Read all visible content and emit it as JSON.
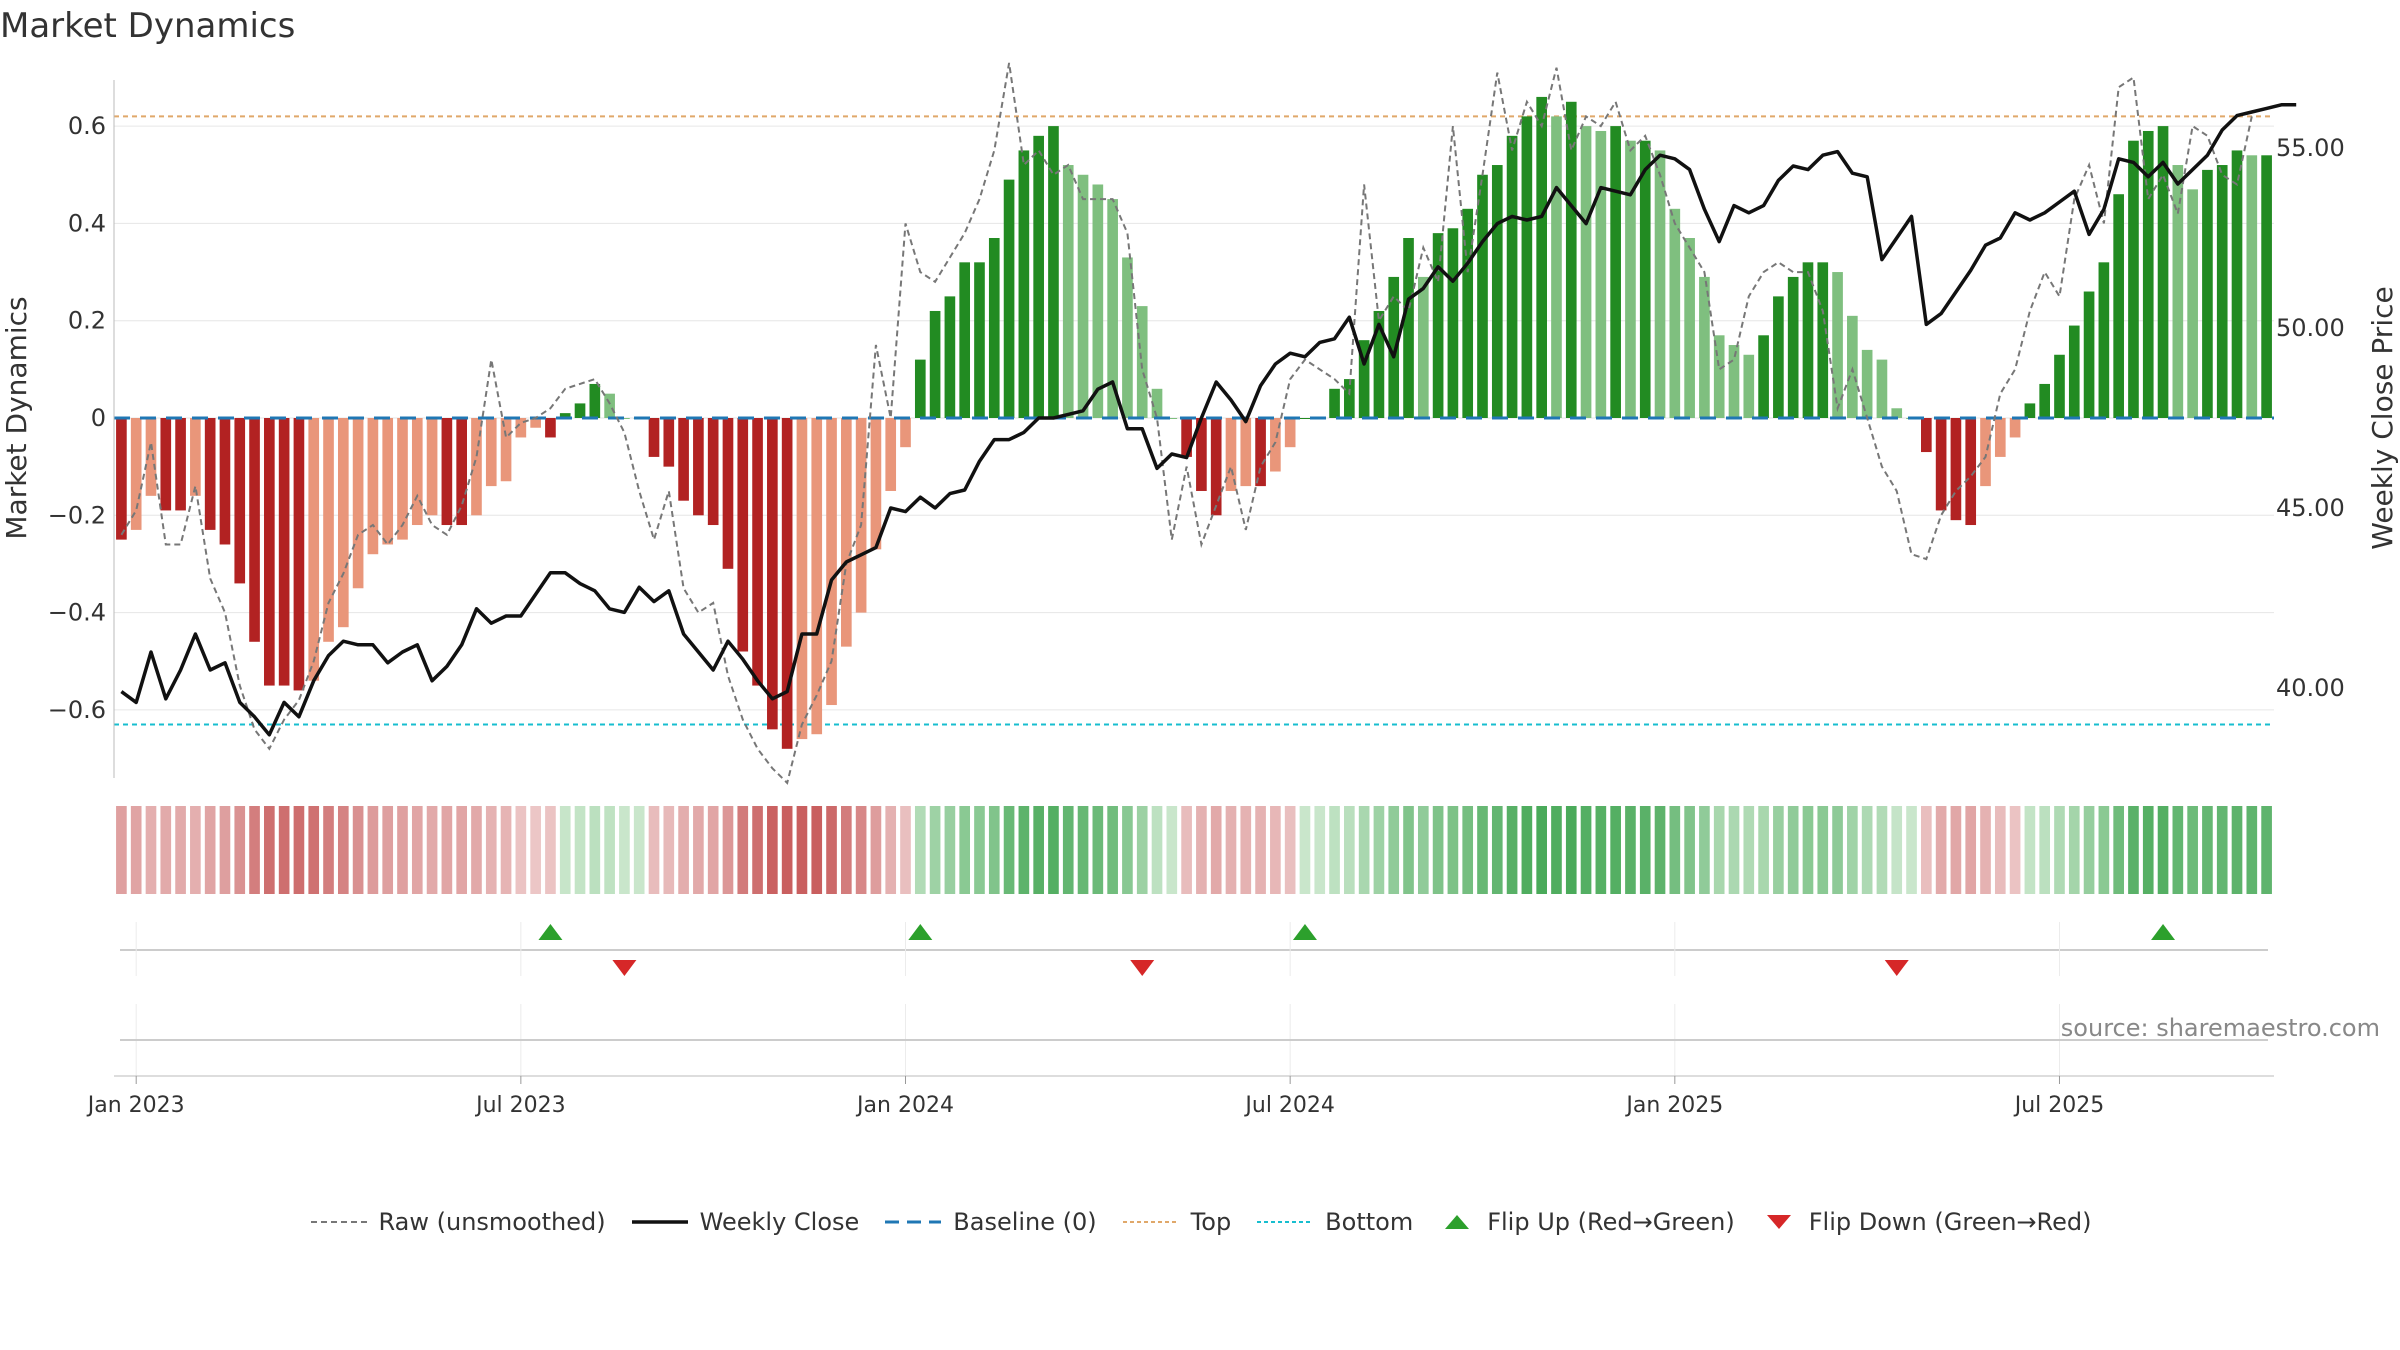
{
  "title": "Market Dynamics",
  "source": "source: sharemaestro.com",
  "colors": {
    "strong_green": "#228b22",
    "light_green": "#7fbf7f",
    "strong_red": "#b22222",
    "light_red": "#e9967a",
    "price_line": "#111111",
    "raw_line": "#777777",
    "baseline": "#1f77b4",
    "top": "#e0a86a",
    "bottom": "#17becf",
    "flip_up": "#2ca02c",
    "flip_down": "#d62728"
  },
  "legend": [
    {
      "label": "Raw (unsmoothed)",
      "icon": "dashed-gray-line"
    },
    {
      "label": "Weekly Close",
      "icon": "solid-black-line"
    },
    {
      "label": "Baseline (0)",
      "icon": "dashed-blue-line"
    },
    {
      "label": "Top",
      "icon": "dotted-orange-line"
    },
    {
      "label": "Bottom",
      "icon": "dotted-cyan-line"
    },
    {
      "label": "Flip Up (Red→Green)",
      "icon": "triangle-up-icon"
    },
    {
      "label": "Flip Down (Green→Red)",
      "icon": "triangle-down-icon"
    }
  ],
  "chart_data": {
    "type": "bar",
    "ylabel_left": "Market Dynamics",
    "ylabel_right": "Weekly Close Price",
    "ylim_left": [
      -0.74,
      0.74
    ],
    "ylim_right": [
      37.5,
      57.5
    ],
    "left_ticks": [
      -0.6,
      -0.4,
      -0.2,
      0,
      0.2,
      0.4,
      0.6
    ],
    "left_tick_labels": [
      "−0.6",
      "−0.4",
      "−0.2",
      "0",
      "0.2",
      "0.4",
      "0.6"
    ],
    "right_ticks": [
      40,
      45,
      50,
      55
    ],
    "right_tick_labels": [
      "40.00",
      "45.00",
      "50.00",
      "55.00"
    ],
    "x_tick_labels": [
      "Jan 2023",
      "Jul 2023",
      "Jan 2024",
      "Jul 2024",
      "Jan 2025",
      "Jul 2025"
    ],
    "x_tick_weeks": [
      1,
      27,
      53,
      79,
      105,
      131
    ],
    "top_level": 0.62,
    "bottom_level": -0.63,
    "grid": true,
    "legend_position": "bottom",
    "dynamics": [
      -0.25,
      -0.23,
      -0.16,
      -0.19,
      -0.19,
      -0.16,
      -0.23,
      -0.26,
      -0.34,
      -0.46,
      -0.55,
      -0.55,
      -0.56,
      -0.54,
      -0.46,
      -0.43,
      -0.35,
      -0.28,
      -0.26,
      -0.25,
      -0.22,
      -0.2,
      -0.22,
      -0.22,
      -0.2,
      -0.14,
      -0.13,
      -0.04,
      -0.02,
      -0.04,
      0.01,
      0.03,
      0.07,
      0.05,
      0.0,
      0.0,
      -0.08,
      -0.1,
      -0.17,
      -0.2,
      -0.22,
      -0.31,
      -0.48,
      -0.55,
      -0.64,
      -0.68,
      -0.66,
      -0.65,
      -0.59,
      -0.47,
      -0.4,
      -0.27,
      -0.15,
      -0.06,
      0.12,
      0.22,
      0.25,
      0.32,
      0.32,
      0.37,
      0.49,
      0.55,
      0.58,
      0.6,
      0.52,
      0.5,
      0.48,
      0.45,
      0.33,
      0.23,
      0.06,
      0.0,
      -0.08,
      -0.15,
      -0.2,
      -0.15,
      -0.14,
      -0.14,
      -0.11,
      -0.06,
      0.0,
      0.0,
      0.06,
      0.08,
      0.16,
      0.22,
      0.29,
      0.37,
      0.29,
      0.38,
      0.39,
      0.43,
      0.5,
      0.52,
      0.58,
      0.62,
      0.66,
      0.62,
      0.65,
      0.6,
      0.59,
      0.6,
      0.57,
      0.57,
      0.55,
      0.43,
      0.37,
      0.29,
      0.17,
      0.15,
      0.13,
      0.17,
      0.25,
      0.29,
      0.32,
      0.32,
      0.3,
      0.21,
      0.14,
      0.12,
      0.02,
      0.0,
      -0.07,
      -0.19,
      -0.21,
      -0.22,
      -0.14,
      -0.08,
      -0.04,
      0.03,
      0.07,
      0.13,
      0.19,
      0.26,
      0.32,
      0.46,
      0.57,
      0.59,
      0.6,
      0.52,
      0.47,
      0.51,
      0.52,
      0.55,
      0.54,
      0.54
    ],
    "raw": [
      -0.24,
      -0.19,
      -0.05,
      -0.26,
      -0.26,
      -0.14,
      -0.33,
      -0.4,
      -0.55,
      -0.64,
      -0.68,
      -0.62,
      -0.58,
      -0.5,
      -0.38,
      -0.32,
      -0.24,
      -0.22,
      -0.26,
      -0.22,
      -0.16,
      -0.22,
      -0.24,
      -0.18,
      -0.08,
      0.12,
      -0.04,
      -0.01,
      0.0,
      0.02,
      0.06,
      0.07,
      0.08,
      0.03,
      -0.03,
      -0.15,
      -0.25,
      -0.15,
      -0.35,
      -0.4,
      -0.38,
      -0.53,
      -0.62,
      -0.68,
      -0.72,
      -0.75,
      -0.63,
      -0.57,
      -0.5,
      -0.3,
      -0.22,
      0.15,
      0.0,
      0.4,
      0.3,
      0.28,
      0.33,
      0.38,
      0.45,
      0.55,
      0.73,
      0.52,
      0.55,
      0.5,
      0.52,
      0.45,
      0.45,
      0.45,
      0.38,
      0.1,
      0.0,
      -0.25,
      -0.1,
      -0.26,
      -0.18,
      -0.1,
      -0.23,
      -0.1,
      -0.05,
      0.08,
      0.12,
      0.1,
      0.08,
      0.05,
      0.48,
      0.2,
      0.25,
      0.22,
      0.35,
      0.28,
      0.6,
      0.3,
      0.5,
      0.71,
      0.55,
      0.65,
      0.6,
      0.72,
      0.55,
      0.62,
      0.6,
      0.65,
      0.55,
      0.58,
      0.5,
      0.4,
      0.35,
      0.3,
      0.1,
      0.12,
      0.25,
      0.3,
      0.32,
      0.3,
      0.3,
      0.22,
      0.02,
      0.1,
      0.0,
      -0.1,
      -0.15,
      -0.28,
      -0.29,
      -0.2,
      -0.15,
      -0.12,
      -0.08,
      0.05,
      0.1,
      0.22,
      0.3,
      0.25,
      0.45,
      0.52,
      0.4,
      0.68,
      0.7,
      0.45,
      0.5,
      0.42,
      0.6,
      0.58,
      0.5,
      0.48,
      0.62
    ],
    "close": [
      39.9,
      39.6,
      41.0,
      39.7,
      40.5,
      41.5,
      40.5,
      40.7,
      39.6,
      39.2,
      38.7,
      39.6,
      39.2,
      40.2,
      40.9,
      41.3,
      41.2,
      41.2,
      40.7,
      41.0,
      41.2,
      40.2,
      40.6,
      41.2,
      42.2,
      41.8,
      42.0,
      42.0,
      42.6,
      43.2,
      43.2,
      42.9,
      42.7,
      42.2,
      42.1,
      42.8,
      42.4,
      42.7,
      41.5,
      41.0,
      40.5,
      41.3,
      40.8,
      40.2,
      39.7,
      39.9,
      41.5,
      41.5,
      43.0,
      43.5,
      43.7,
      43.9,
      45.0,
      44.9,
      45.3,
      45.0,
      45.4,
      45.5,
      46.3,
      46.9,
      46.9,
      47.1,
      47.5,
      47.5,
      47.6,
      47.7,
      48.3,
      48.5,
      47.2,
      47.2,
      46.1,
      46.5,
      46.4,
      47.5,
      48.5,
      48.0,
      47.4,
      48.4,
      49.0,
      49.3,
      49.2,
      49.6,
      49.7,
      50.3,
      49.0,
      50.1,
      49.2,
      50.8,
      51.1,
      51.7,
      51.3,
      51.8,
      52.4,
      52.9,
      53.1,
      53.0,
      53.1,
      53.9,
      53.4,
      52.9,
      53.9,
      53.8,
      53.7,
      54.4,
      54.8,
      54.7,
      54.4,
      53.3,
      52.4,
      53.4,
      53.2,
      53.4,
      54.1,
      54.5,
      54.4,
      54.8,
      54.9,
      54.3,
      54.2,
      51.9,
      52.5,
      53.1,
      50.1,
      50.4,
      51.0,
      51.6,
      52.3,
      52.5,
      53.2,
      53.0,
      53.2,
      53.5,
      53.8,
      52.6,
      53.3,
      54.7,
      54.6,
      54.2,
      54.6,
      54.0,
      54.4,
      54.8,
      55.5,
      55.9,
      56.0,
      56.1,
      56.2,
      56.2
    ],
    "flip_up_weeks": [
      29,
      54,
      80,
      138
    ],
    "flip_down_weeks": [
      34,
      69,
      120
    ]
  }
}
